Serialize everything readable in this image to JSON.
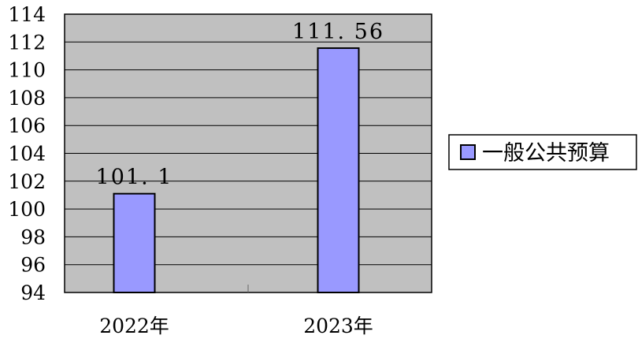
{
  "chart_data": {
    "type": "bar",
    "categories": [
      "2022年",
      "2023年"
    ],
    "series": [
      {
        "name": "一般公共预算",
        "values": [
          101.1,
          111.56
        ]
      }
    ],
    "data_labels": [
      "101. 1",
      "111. 56"
    ],
    "ylim": [
      94,
      114
    ],
    "yticks": [
      94,
      96,
      98,
      100,
      102,
      104,
      106,
      108,
      110,
      112,
      114
    ],
    "grid": true,
    "legend_position": "right",
    "colors": {
      "plot_background": "#c0c0c0",
      "bar_fill": "#9999ff",
      "bar_stroke": "#000000",
      "grid": "#000000"
    }
  }
}
